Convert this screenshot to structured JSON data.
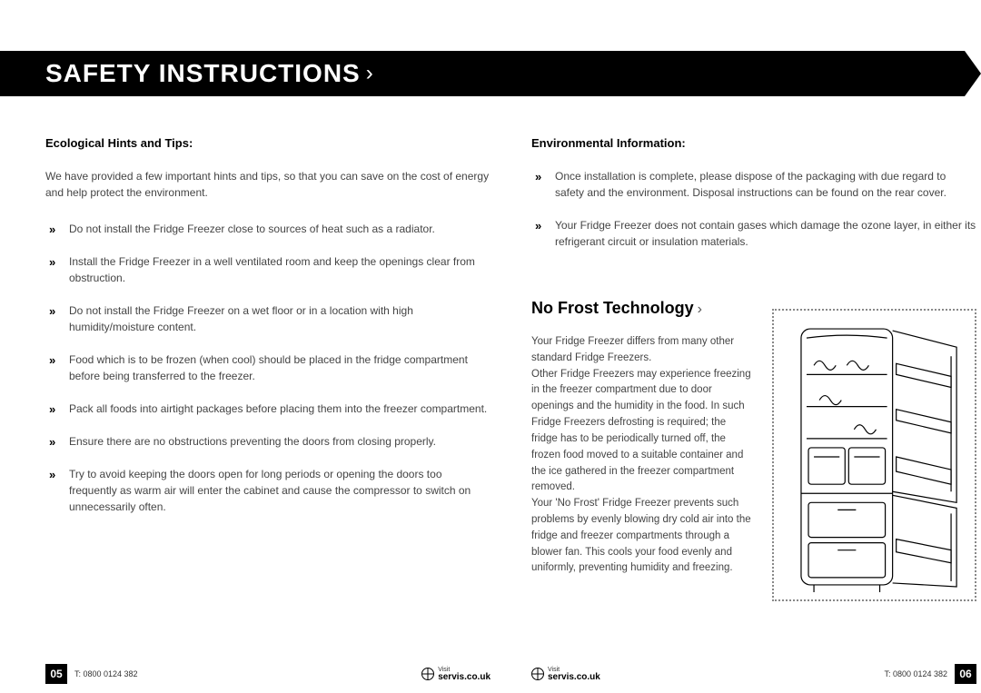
{
  "header": {
    "title": "SAFETY INSTRUCTIONS"
  },
  "left": {
    "subheading": "Ecological Hints and Tips:",
    "intro": "We have provided a few important hints and tips, so that you can save on the cost of energy and help protect the environment.",
    "bullets": [
      "Do not install the Fridge Freezer close to sources of heat such as a radiator.",
      "Install the Fridge Freezer in a well ventilated room and keep the openings clear from obstruction.",
      "Do not install the Fridge Freezer on a wet floor or in a location with high humidity/moisture content.",
      "Food which is to be frozen (when cool) should be placed in the fridge compartment before being transferred to the freezer.",
      "Pack all foods into airtight packages before placing them into the freezer compartment.",
      "Ensure there are no obstructions preventing the doors from closing properly.",
      "Try to avoid keeping the doors open for long periods or opening the doors too frequently as warm air will enter the cabinet and cause the compressor to switch on unnecessarily often."
    ]
  },
  "right": {
    "subheading": "Environmental Information:",
    "bullets": [
      "Once installation is complete, please dispose of the packaging with due regard to safety and the environment. Disposal instructions can be found on the rear cover.",
      "Your Fridge Freezer does not contain gases which damage the ozone layer, in either its refrigerant circuit or insulation materials."
    ],
    "section_heading": "No Frost Technology",
    "nofrost_text": "Your Fridge Freezer differs from many other standard Fridge Freezers.\nOther Fridge Freezers may experience freezing in the freezer compartment due to door openings and the humidity in the food. In such Fridge Freezers defrosting is required; the fridge has to be periodically turned off, the frozen food moved to a suitable container and the ice gathered in the freezer compartment removed.\nYour 'No Frost' Fridge Freezer prevents such problems by evenly blowing dry cold air into the fridge and freezer compartments through a blower fan. This cools your food evenly and uniformly, preventing humidity and freezing."
  },
  "footer": {
    "phone": "T: 0800 0124 382",
    "visit_label": "Visit",
    "visit_url": "servis.co.uk",
    "page_left": "05",
    "page_right": "06"
  },
  "styling": {
    "banner_bg": "#000000",
    "banner_fg": "#ffffff",
    "body_text_color": "#444444",
    "heading_color": "#000000",
    "dotted_border_color": "#888888",
    "page_bg": "#ffffff"
  }
}
